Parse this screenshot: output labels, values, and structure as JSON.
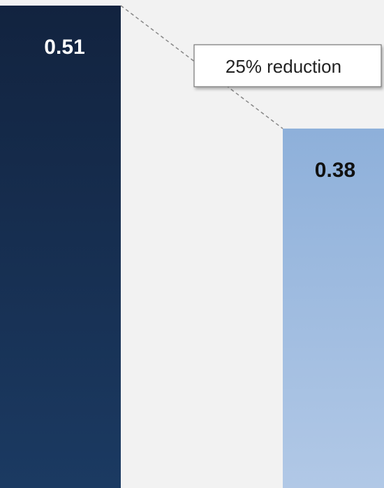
{
  "chart_data": {
    "type": "bar",
    "values": [
      0.51,
      0.38
    ],
    "data_labels": [
      "0.51",
      "0.38"
    ],
    "ylim": [
      0,
      0.51
    ],
    "grid": false,
    "legend": "none",
    "annotation": {
      "text": "25% reduction",
      "style": "dashed-connector-callout"
    },
    "colors": {
      "background": "#f2f2f2",
      "bar_1_top": "#12233f",
      "bar_1_bottom": "#1b3a62",
      "bar_2_top": "#8eb0da",
      "bar_2_bottom": "#b1c8e6",
      "label_on_dark": "#ffffff",
      "label_on_light": "#111111",
      "connector": "#888888",
      "callout_border": "#777777",
      "callout_fill": "#ffffff"
    }
  }
}
